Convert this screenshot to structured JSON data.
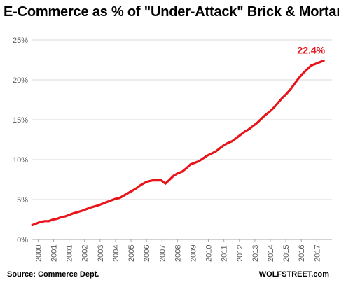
{
  "chart_data": {
    "type": "line",
    "title": "E-Commerce as % of \"Under-Attack\" Brick & Mortar",
    "xlabel": "",
    "ylabel": "",
    "ylim": [
      0,
      25
    ],
    "xlim": [
      2000,
      2018
    ],
    "y_ticks": [
      "0%",
      "5%",
      "10%",
      "15%",
      "20%",
      "25%"
    ],
    "x_ticks": [
      "2000",
      "2001",
      "2001",
      "2002",
      "2003",
      "2004",
      "2005",
      "2006",
      "2007",
      "2008",
      "2009",
      "2010",
      "2011",
      "2012",
      "2013",
      "2014",
      "2015",
      "2016",
      "2017"
    ],
    "grid": true,
    "line_color": "#e8141a",
    "series": [
      {
        "x": [
          2000.0,
          2000.25,
          2000.5,
          2000.75,
          2001.0,
          2001.25,
          2001.5,
          2001.75,
          2002.0,
          2002.5,
          2003.0,
          2003.5,
          2004.0,
          2004.5,
          2005.0,
          2005.25,
          2005.5,
          2005.75,
          2006.0,
          2006.25,
          2006.5,
          2006.75,
          2007.0,
          2007.25,
          2007.5,
          2007.75,
          2008.0,
          2008.25,
          2008.5,
          2008.75,
          2009.0,
          2009.25,
          2009.5,
          2009.75,
          2010.0,
          2010.5,
          2011.0,
          2011.25,
          2011.5,
          2011.75,
          2012.0,
          2012.25,
          2012.5,
          2012.75,
          2013.0,
          2013.25,
          2013.5,
          2013.75,
          2014.0,
          2014.25,
          2014.5,
          2014.75,
          2015.0,
          2015.25,
          2015.5,
          2015.75,
          2016.0,
          2016.25,
          2016.5,
          2016.75,
          2017.0,
          2017.25,
          2017.5
        ],
        "values": [
          1.8,
          2.0,
          2.2,
          2.3,
          2.3,
          2.5,
          2.6,
          2.8,
          2.9,
          3.3,
          3.6,
          4.0,
          4.3,
          4.7,
          5.1,
          5.2,
          5.5,
          5.8,
          6.1,
          6.4,
          6.8,
          7.1,
          7.3,
          7.4,
          7.4,
          7.4,
          7.0,
          7.5,
          8.0,
          8.3,
          8.5,
          8.9,
          9.4,
          9.6,
          9.8,
          10.5,
          11.0,
          11.4,
          11.8,
          12.1,
          12.3,
          12.7,
          13.1,
          13.5,
          13.8,
          14.2,
          14.6,
          15.1,
          15.6,
          16.0,
          16.5,
          17.1,
          17.7,
          18.2,
          18.8,
          19.5,
          20.2,
          20.8,
          21.3,
          21.8,
          22.0,
          22.2,
          22.4
        ]
      }
    ],
    "annotation": {
      "text": "22.4%",
      "x": 2017.5,
      "y": 22.4
    }
  },
  "footer": {
    "source": "Source: Commerce Dept.",
    "brand": "WOLFSTREET.com"
  }
}
